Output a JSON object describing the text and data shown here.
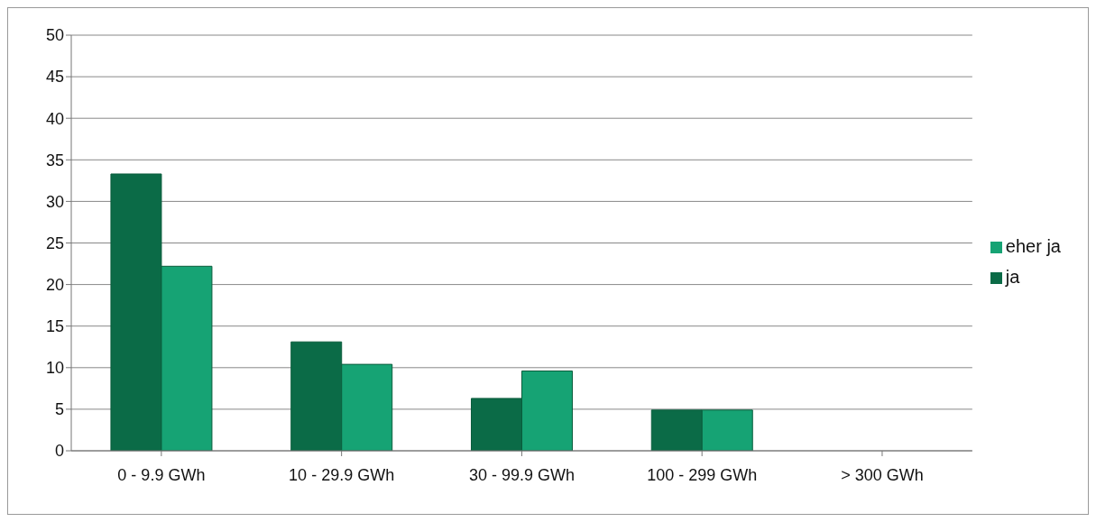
{
  "chart_data": {
    "type": "bar",
    "categories": [
      "0 - 9.9 GWh",
      "10 - 29.9 GWh",
      "30 - 99.9 GWh",
      "100 - 299 GWh",
      "> 300 GWh"
    ],
    "series": [
      {
        "name": "ja",
        "color": "#0b6b47",
        "values": [
          33.3,
          13.1,
          6.3,
          4.9,
          0
        ]
      },
      {
        "name": "eher ja",
        "color": "#16a374",
        "values": [
          22.2,
          10.4,
          9.6,
          4.9,
          0
        ]
      }
    ],
    "ylim": [
      0,
      50
    ],
    "yticks": [
      0,
      5,
      10,
      15,
      20,
      25,
      30,
      35,
      40,
      45,
      50
    ],
    "grid": "y",
    "legend": "right"
  }
}
